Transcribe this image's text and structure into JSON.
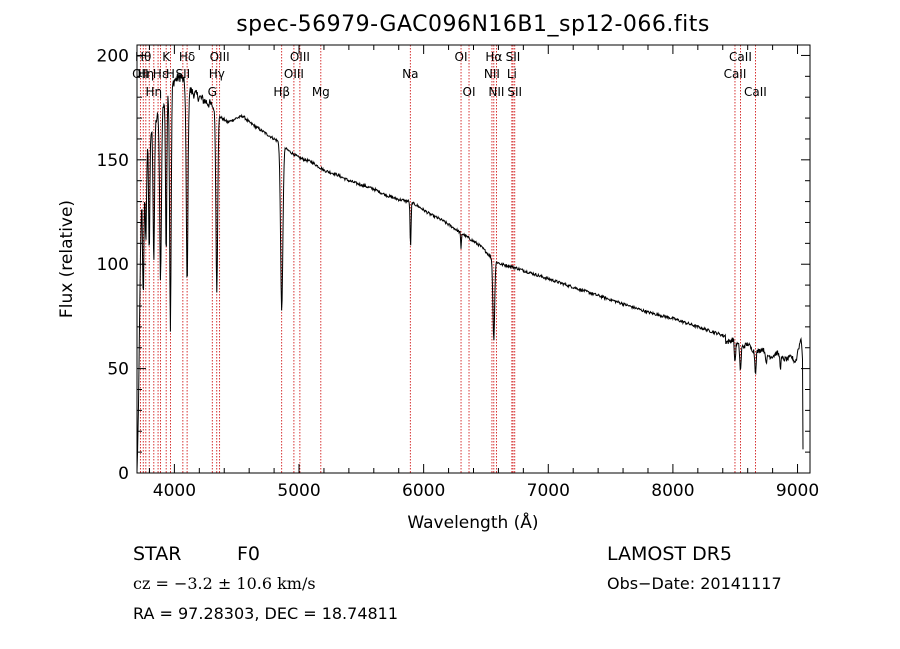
{
  "chart_data": {
    "type": "line",
    "title": "spec-56979-GAC096N16B1_sp12-066.fits",
    "xlabel": "Wavelength (Å)",
    "ylabel": "Flux (relative)",
    "xlim": [
      3700,
      9100
    ],
    "ylim": [
      0,
      205
    ],
    "xticks": [
      4000,
      5000,
      6000,
      7000,
      8000,
      9000
    ],
    "yticks": [
      0,
      50,
      100,
      150,
      200
    ],
    "grid": false,
    "continuum": [
      [
        3700,
        0
      ],
      [
        3712,
        30
      ],
      [
        3725,
        95
      ],
      [
        3740,
        140
      ],
      [
        3760,
        150
      ],
      [
        3790,
        160
      ],
      [
        3830,
        166
      ],
      [
        3860,
        170
      ],
      [
        3900,
        175
      ],
      [
        3950,
        182
      ],
      [
        4000,
        188
      ],
      [
        4050,
        190
      ],
      [
        4100,
        185
      ],
      [
        4150,
        182
      ],
      [
        4200,
        180
      ],
      [
        4250,
        178
      ],
      [
        4300,
        176
      ],
      [
        4340,
        172
      ],
      [
        4380,
        170
      ],
      [
        4430,
        168
      ],
      [
        4500,
        170
      ],
      [
        4550,
        171
      ],
      [
        4600,
        168
      ],
      [
        4650,
        166
      ],
      [
        4700,
        164
      ],
      [
        4750,
        162
      ],
      [
        4800,
        160
      ],
      [
        4860,
        158
      ],
      [
        4900,
        155
      ],
      [
        4950,
        153
      ],
      [
        5000,
        151
      ],
      [
        5050,
        150
      ],
      [
        5100,
        149
      ],
      [
        5150,
        147
      ],
      [
        5200,
        145
      ],
      [
        5300,
        143
      ],
      [
        5400,
        140
      ],
      [
        5500,
        138
      ],
      [
        5600,
        136
      ],
      [
        5700,
        133
      ],
      [
        5800,
        131
      ],
      [
        5890,
        130
      ],
      [
        5950,
        128
      ],
      [
        6050,
        124
      ],
      [
        6150,
        121
      ],
      [
        6250,
        117
      ],
      [
        6350,
        113
      ],
      [
        6450,
        109
      ],
      [
        6500,
        106
      ],
      [
        6560,
        102
      ],
      [
        6620,
        100
      ],
      [
        6700,
        99
      ],
      [
        6800,
        97
      ],
      [
        6900,
        95
      ],
      [
        7000,
        93
      ],
      [
        7200,
        89
      ],
      [
        7400,
        85
      ],
      [
        7600,
        81
      ],
      [
        7800,
        77
      ],
      [
        8000,
        74
      ],
      [
        8200,
        70
      ],
      [
        8400,
        66
      ],
      [
        8500,
        64
      ],
      [
        8600,
        62
      ],
      [
        8700,
        60
      ],
      [
        8800,
        58
      ],
      [
        8900,
        57
      ],
      [
        8980,
        55
      ],
      [
        9010,
        60
      ],
      [
        9030,
        65
      ],
      [
        9040,
        55
      ],
      [
        9045,
        0
      ]
    ],
    "absorption_features": [
      [
        3750,
        60,
        6
      ],
      [
        3771,
        45,
        5
      ],
      [
        3798,
        55,
        5
      ],
      [
        3835,
        65,
        6
      ],
      [
        3889,
        80,
        7
      ],
      [
        3934,
        75,
        5
      ],
      [
        3968,
        115,
        6
      ],
      [
        4102,
        95,
        7
      ],
      [
        4340,
        85,
        7
      ],
      [
        4861,
        80,
        9
      ],
      [
        5895,
        22,
        4
      ],
      [
        6300,
        8,
        3
      ],
      [
        6563,
        38,
        7
      ],
      [
        8498,
        10,
        5
      ],
      [
        8542,
        12,
        5
      ],
      [
        8662,
        10,
        5
      ],
      [
        8750,
        6,
        4
      ],
      [
        8863,
        5,
        4
      ]
    ],
    "lines": [
      {
        "wl": 3727,
        "label": "OII",
        "row": 1
      },
      {
        "wl": 3750,
        "label": "Hθ",
        "row": 0
      },
      {
        "wl": 3771,
        "label": "Hη",
        "row": 1
      },
      {
        "wl": 3798,
        "label": "",
        "row": 0
      },
      {
        "wl": 3835,
        "label": "Hη",
        "row": 2
      },
      {
        "wl": 3869,
        "label": "",
        "row": 0
      },
      {
        "wl": 3889,
        "label": "Hε",
        "row": 1
      },
      {
        "wl": 3934,
        "label": "K",
        "row": 0
      },
      {
        "wl": 3968,
        "label": "H",
        "row": 1
      },
      {
        "wl": 4102,
        "label": "Hδ",
        "row": 0
      },
      {
        "wl": 4068,
        "label": "SII",
        "row": 1
      },
      {
        "wl": 4304,
        "label": "G",
        "row": 2
      },
      {
        "wl": 4340,
        "label": "Hγ",
        "row": 1
      },
      {
        "wl": 4363,
        "label": "OIII",
        "row": 0
      },
      {
        "wl": 4861,
        "label": "Hβ",
        "row": 2
      },
      {
        "wl": 4959,
        "label": "OIII",
        "row": 1
      },
      {
        "wl": 5007,
        "label": "OIII",
        "row": 0
      },
      {
        "wl": 5175,
        "label": "Mg",
        "row": 2
      },
      {
        "wl": 5893,
        "label": "Na",
        "row": 1
      },
      {
        "wl": 6300,
        "label": "OI",
        "row": 0
      },
      {
        "wl": 6364,
        "label": "OI",
        "row": 2
      },
      {
        "wl": 6548,
        "label": "NII",
        "row": 1
      },
      {
        "wl": 6563,
        "label": "Hα",
        "row": 0
      },
      {
        "wl": 6584,
        "label": "NII",
        "row": 2
      },
      {
        "wl": 6708,
        "label": "Li",
        "row": 1
      },
      {
        "wl": 6717,
        "label": "SII",
        "row": 0
      },
      {
        "wl": 6731,
        "label": "SII",
        "row": 2
      },
      {
        "wl": 8498,
        "label": "CaII",
        "row": 1
      },
      {
        "wl": 8542,
        "label": "CaII",
        "row": 0
      },
      {
        "wl": 8662,
        "label": "CaII",
        "row": 2
      }
    ]
  },
  "info": {
    "class": "STAR",
    "subclass": "F0",
    "survey": "LAMOST  DR5",
    "cz": "cz = −3.2 ± 10.6 km/s",
    "obs_date": "Obs−Date: 20141117",
    "radec": "RA =  97.28303, DEC =  18.74811"
  },
  "colors": {
    "spectrum": "#000000",
    "line_markers": "#cc0000",
    "axes": "#000000"
  }
}
